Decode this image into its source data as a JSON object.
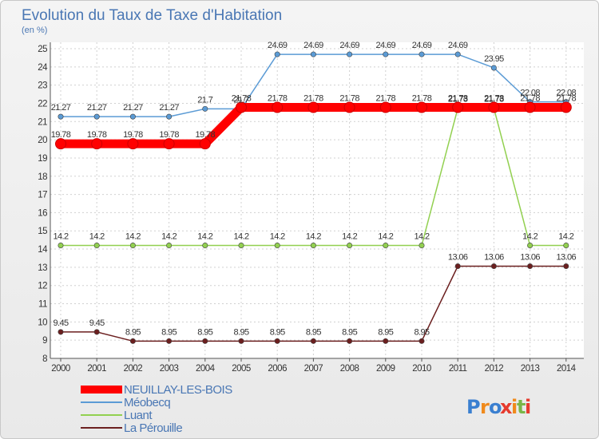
{
  "chart_data": {
    "type": "line",
    "title": "Evolution du Taux de Taxe d'Habitation",
    "unit_label": "(en %)",
    "x": [
      "2000",
      "2001",
      "2002",
      "2003",
      "2004",
      "2005",
      "2006",
      "2007",
      "2008",
      "2009",
      "2010",
      "2011",
      "2012",
      "2013",
      "2014"
    ],
    "ylim": [
      8,
      25
    ],
    "yticks": [
      8,
      9,
      10,
      11,
      12,
      13,
      14,
      15,
      16,
      17,
      18,
      19,
      20,
      21,
      22,
      23,
      24,
      25
    ],
    "grid": true,
    "legend_position": "bottom-left",
    "series": [
      {
        "name": "NEUILLAY-LES-BOIS",
        "color": "#ff0000",
        "values": [
          19.78,
          19.78,
          19.78,
          19.78,
          19.78,
          21.78,
          21.78,
          21.78,
          21.78,
          21.78,
          21.78,
          21.78,
          21.78,
          21.78,
          21.78
        ],
        "labels": [
          "19.78",
          "19.78",
          "19.78",
          "19.78",
          "19.78",
          "21.78",
          "21.78",
          "21.78",
          "21.78",
          "21.78",
          "21.78",
          "21.78",
          "21.78",
          "21.78",
          "21.78"
        ]
      },
      {
        "name": "Méobecq",
        "color": "#5b9bd5",
        "values": [
          21.27,
          21.27,
          21.27,
          21.27,
          21.7,
          21.7,
          24.69,
          24.69,
          24.69,
          24.69,
          24.69,
          24.69,
          23.95,
          22.08,
          22.08
        ],
        "labels": [
          "21.27",
          "21.27",
          "21.27",
          "21.27",
          "21.7",
          "21.7",
          "24.69",
          "24.69",
          "24.69",
          "24.69",
          "24.69",
          "24.69",
          "23.95",
          "22.08",
          "22.08"
        ]
      },
      {
        "name": "Luant",
        "color": "#92d050",
        "values": [
          14.2,
          14.2,
          14.2,
          14.2,
          14.2,
          14.2,
          14.2,
          14.2,
          14.2,
          14.2,
          14.2,
          21.73,
          21.73,
          14.2,
          14.2
        ],
        "labels": [
          "14.2",
          "14.2",
          "14.2",
          "14.2",
          "14.2",
          "14.2",
          "14.2",
          "14.2",
          "14.2",
          "14.2",
          "14.2",
          "21.73",
          "21.73",
          "14.2",
          "14.2"
        ]
      },
      {
        "name": "La Pérouille",
        "color": "#6b1f1f",
        "values": [
          9.45,
          9.45,
          8.95,
          8.95,
          8.95,
          8.95,
          8.95,
          8.95,
          8.95,
          8.95,
          8.95,
          13.06,
          13.06,
          13.06,
          13.06
        ],
        "labels": [
          "9.45",
          "9.45",
          "8.95",
          "8.95",
          "8.95",
          "8.95",
          "8.95",
          "8.95",
          "8.95",
          "8.95",
          "8.95",
          "13.06",
          "13.06",
          "13.06",
          "13.06"
        ]
      }
    ]
  },
  "logo": {
    "text": "Proxiti",
    "letters": [
      "P",
      "r",
      "o",
      "x",
      "i",
      "t",
      "i"
    ],
    "colors": [
      "#3a7fd0",
      "#f08a1c",
      "#3a7fd0",
      "#e63b2e",
      "#f08a1c",
      "#7ab648",
      "#e63b2e"
    ]
  }
}
